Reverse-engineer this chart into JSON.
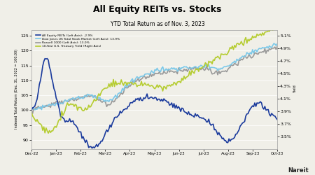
{
  "title": "All Equity REITs vs. Stocks",
  "subtitle": "YTD Total Return as of Nov. 3, 2023",
  "ylabel_left": "Indexed Total Return (Dec. 31, 2022 = 100.00)",
  "ylabel_right": "Yield",
  "ylim_left": [
    87,
    127
  ],
  "ylim_right": [
    3.3,
    5.2
  ],
  "yticks_left": [
    90,
    95,
    100,
    105,
    110,
    115,
    120,
    125
  ],
  "yticks_right": [
    3.5,
    3.7,
    3.9,
    4.1,
    4.3,
    4.5,
    4.7,
    4.9,
    5.1
  ],
  "xtick_labels": [
    "Dec-22",
    "Jan-23",
    "Feb-23",
    "Mar-23",
    "Apr-23",
    "May-23",
    "Jun-23",
    "Jul-23",
    "Aug-23",
    "Sep-23",
    "Oct-23"
  ],
  "legend": [
    {
      "label": "All Equity REITs (Left Axis): -2.9%",
      "color": "#1a3a9c",
      "lw": 1.2
    },
    {
      "label": "Dow Jones US Total Stock Market (Left Axis): 13.9%",
      "color": "#7bc8e8",
      "lw": 1.2
    },
    {
      "label": "Russell 1000 (Left Axis): 13.0%",
      "color": "#999999",
      "lw": 1.2
    },
    {
      "label": "10-Year U.S. Treasury Yield (Right Axis)",
      "color": "#b5cc30",
      "lw": 1.2
    }
  ],
  "watermark": "Nareit",
  "background_color": "#f0efe8"
}
